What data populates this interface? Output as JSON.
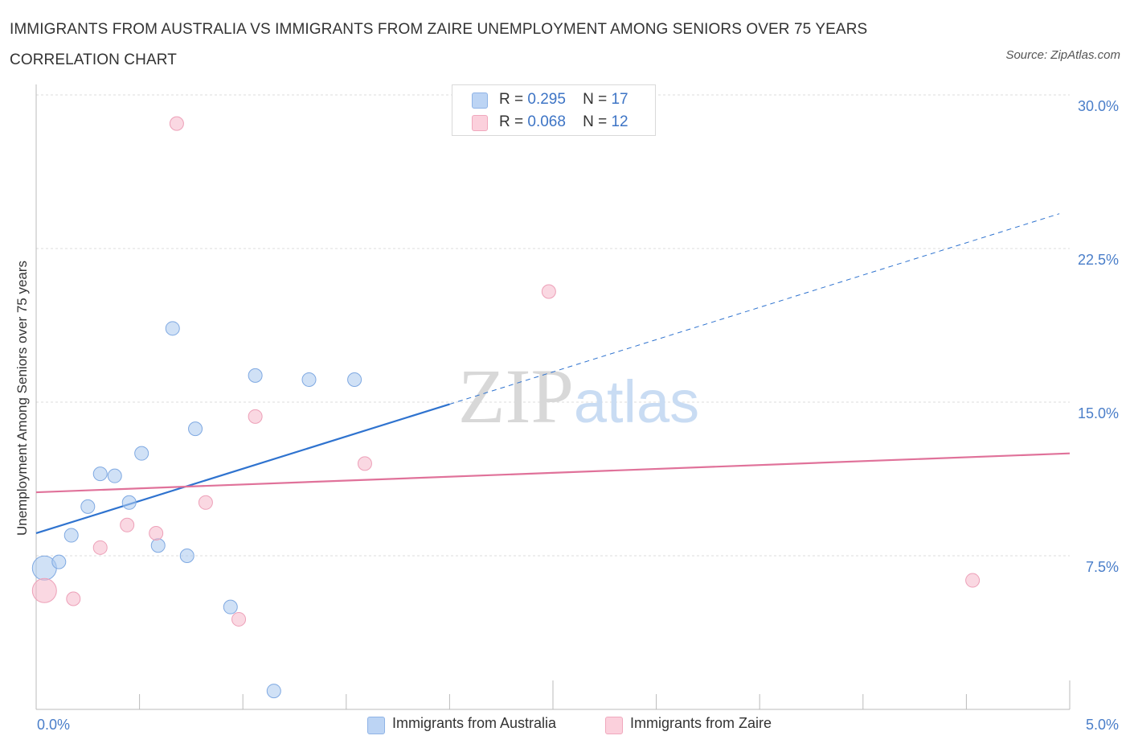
{
  "chart_data": {
    "type": "scatter",
    "title": "IMMIGRANTS FROM AUSTRALIA VS IMMIGRANTS FROM ZAIRE UNEMPLOYMENT AMONG SENIORS OVER 75 YEARS CORRELATION CHART",
    "source": "Source: ZipAtlas.com",
    "ylabel": "Unemployment Among Seniors over 75 years",
    "xlabel": "",
    "xlim": [
      0,
      5
    ],
    "ylim": [
      0,
      30
    ],
    "x_tick_labels": [
      "0.0%",
      "5.0%"
    ],
    "y_ticks": [
      7.5,
      15,
      22.5,
      30
    ],
    "y_tick_labels": [
      "7.5%",
      "15.0%",
      "22.5%",
      "30.0%"
    ],
    "grid": true,
    "watermark": "ZIPatlas",
    "legend_stats": [
      {
        "r_label": "R =",
        "r_value": "0.295",
        "n_label": "N =",
        "n_value": "17"
      },
      {
        "r_label": "R =",
        "r_value": "0.068",
        "n_label": "N =",
        "n_value": "12"
      }
    ],
    "series": [
      {
        "name": "Immigrants from Australia",
        "color": "#a9c8ef",
        "line_color": "#2f73cf",
        "points": [
          {
            "x": 0.04,
            "y": 6.9,
            "size": "large"
          },
          {
            "x": 0.11,
            "y": 7.2
          },
          {
            "x": 0.17,
            "y": 8.5
          },
          {
            "x": 0.25,
            "y": 9.9
          },
          {
            "x": 0.31,
            "y": 11.5
          },
          {
            "x": 0.38,
            "y": 11.4
          },
          {
            "x": 0.45,
            "y": 10.1
          },
          {
            "x": 0.51,
            "y": 12.5
          },
          {
            "x": 0.59,
            "y": 8.0
          },
          {
            "x": 0.66,
            "y": 18.6
          },
          {
            "x": 0.73,
            "y": 7.5
          },
          {
            "x": 0.77,
            "y": 13.7
          },
          {
            "x": 0.94,
            "y": 5.0
          },
          {
            "x": 1.06,
            "y": 16.3
          },
          {
            "x": 1.15,
            "y": 0.9
          },
          {
            "x": 1.32,
            "y": 16.1
          },
          {
            "x": 1.54,
            "y": 16.1
          }
        ],
        "trend": {
          "x0": 0,
          "y0": 8.6,
          "x1": 2.0,
          "y1": 14.9,
          "dash_to_x": 4.95,
          "dash_to_y": 24.2
        }
      },
      {
        "name": "Immigrants from Zaire",
        "color": "#f5b8ca",
        "line_color": "#e0729a",
        "points": [
          {
            "x": 0.04,
            "y": 5.8,
            "size": "large"
          },
          {
            "x": 0.18,
            "y": 5.4
          },
          {
            "x": 0.31,
            "y": 7.9
          },
          {
            "x": 0.44,
            "y": 9.0
          },
          {
            "x": 0.58,
            "y": 8.6
          },
          {
            "x": 0.68,
            "y": 28.6
          },
          {
            "x": 0.82,
            "y": 10.1
          },
          {
            "x": 0.98,
            "y": 4.4
          },
          {
            "x": 1.06,
            "y": 14.3
          },
          {
            "x": 1.59,
            "y": 12.0
          },
          {
            "x": 2.48,
            "y": 20.4
          },
          {
            "x": 4.53,
            "y": 6.3
          }
        ],
        "trend": {
          "x0": 0,
          "y0": 10.6,
          "x1": 5.0,
          "y1": 12.5
        }
      }
    ]
  }
}
